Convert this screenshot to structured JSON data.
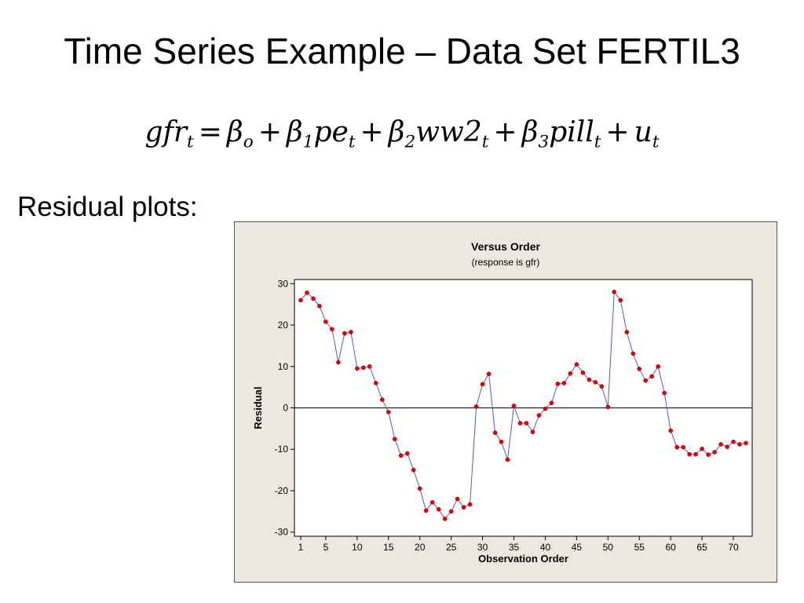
{
  "slide": {
    "title": "Time Series Example – Data Set FERTIL3",
    "residual_label": "Residual plots:",
    "equation": {
      "lhs": "gfr",
      "lhs_sub": "t",
      "equals": "=",
      "plus": "+",
      "terms": [
        {
          "coef": "β",
          "coef_sub": "o",
          "var": "",
          "var_sub": ""
        },
        {
          "coef": "β",
          "coef_sub": "1",
          "var": "pe",
          "var_sub": "t"
        },
        {
          "coef": "β",
          "coef_sub": "2",
          "var": "ww2",
          "var_sub": "t"
        },
        {
          "coef": "β",
          "coef_sub": "3",
          "var": "pill",
          "var_sub": "t"
        },
        {
          "coef": "",
          "coef_sub": "",
          "var": "u",
          "var_sub": "t"
        }
      ]
    }
  },
  "chart_data": {
    "type": "line",
    "title": "Versus Order",
    "subtitle": "(response is gfr)",
    "xlabel": "Observation Order",
    "ylabel": "Residual",
    "xlim": [
      0,
      73
    ],
    "ylim": [
      -31,
      31
    ],
    "xticks": [
      1,
      5,
      10,
      15,
      20,
      25,
      30,
      35,
      40,
      45,
      50,
      55,
      60,
      65,
      70
    ],
    "xtick_labels": [
      "1",
      "5",
      "10",
      "15",
      "20",
      "25",
      "30",
      "35",
      "40",
      "45",
      "50",
      "55",
      "60",
      "65",
      "70"
    ],
    "yticks": [
      -30,
      -20,
      -10,
      0,
      10,
      20,
      30
    ],
    "ytick_labels": [
      "-30",
      "-20",
      "-10",
      "0",
      "10",
      "20",
      "30"
    ],
    "reference_line_y": 0,
    "grid": false,
    "line_color": "#4a5bd8",
    "marker_color": "#e00000",
    "x": [
      1,
      2,
      3,
      4,
      5,
      6,
      7,
      8,
      9,
      10,
      11,
      12,
      13,
      14,
      15,
      16,
      17,
      18,
      19,
      20,
      21,
      22,
      23,
      24,
      25,
      26,
      27,
      28,
      29,
      30,
      31,
      32,
      33,
      34,
      35,
      36,
      37,
      38,
      39,
      40,
      41,
      42,
      43,
      44,
      45,
      46,
      47,
      48,
      49,
      50,
      51,
      52,
      53,
      54,
      55,
      56,
      57,
      58,
      59,
      60,
      61,
      62,
      63,
      64,
      65,
      66,
      67,
      68,
      69,
      70,
      71,
      72
    ],
    "values": [
      26,
      27.8,
      26.4,
      24.6,
      20.8,
      19,
      11,
      18,
      18.3,
      9.5,
      9.7,
      10,
      6,
      2,
      -1,
      -7.5,
      -11.5,
      -11,
      -15,
      -19.5,
      -24.8,
      -22.8,
      -24.5,
      -26.8,
      -25,
      -22,
      -24,
      -23.3,
      0.3,
      5.7,
      8.2,
      -6,
      -8.2,
      -12.5,
      0.5,
      -3.7,
      -3.7,
      -5.8,
      -1.8,
      -0.2,
      1.2,
      5.8,
      6,
      8.3,
      10.5,
      8.5,
      6.8,
      6.2,
      5.2,
      0.2,
      28,
      26,
      18.3,
      13.1,
      9.4,
      6.6,
      7.6,
      10,
      3.6,
      -5.5,
      -9.5,
      -9.5,
      -11.2,
      -11.2,
      -9.9,
      -11.3,
      -10.7,
      -8.8,
      -9.4,
      -8.2,
      -8.8,
      -8.5
    ]
  }
}
